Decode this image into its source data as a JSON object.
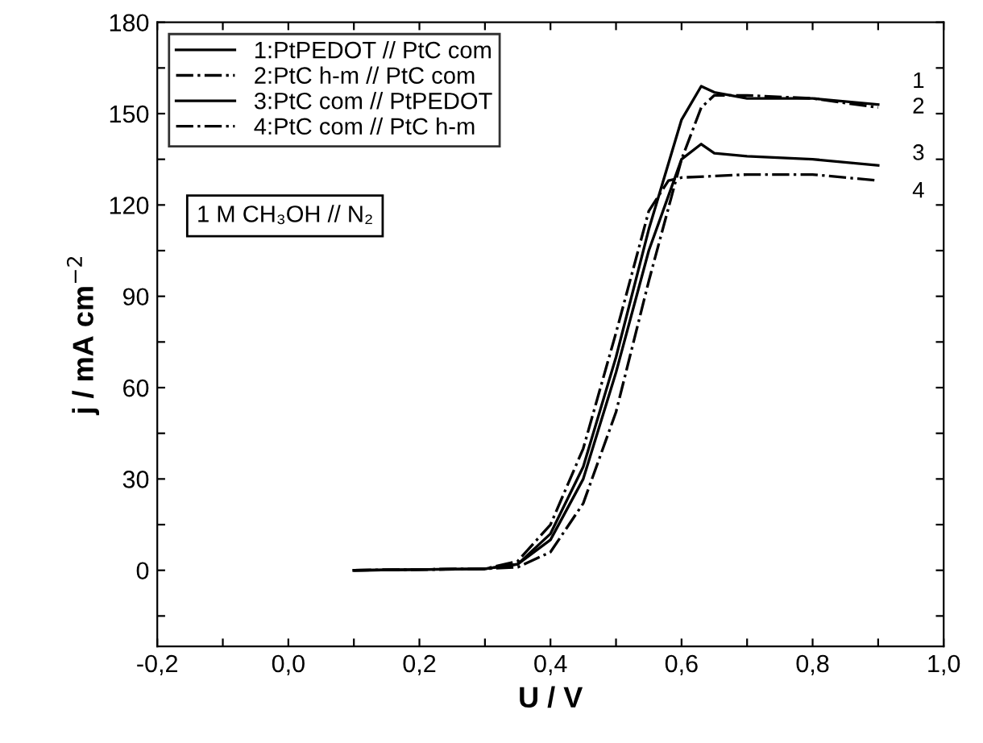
{
  "chart_data": {
    "type": "line",
    "xlabel": "U / V",
    "ylabel": "j / mA cm$^{−2}$",
    "xlim": [
      -0.2,
      1.0
    ],
    "ylim": [
      -25,
      180
    ],
    "xticks": [
      {
        "value": -0.2,
        "label": "-0,2"
      },
      {
        "value": -0.1,
        "label": null
      },
      {
        "value": 0.0,
        "label": "0,0"
      },
      {
        "value": 0.1,
        "label": null
      },
      {
        "value": 0.2,
        "label": "0,2"
      },
      {
        "value": 0.3,
        "label": null
      },
      {
        "value": 0.4,
        "label": "0,4"
      },
      {
        "value": 0.5,
        "label": null
      },
      {
        "value": 0.6,
        "label": "0,6"
      },
      {
        "value": 0.7,
        "label": null
      },
      {
        "value": 0.8,
        "label": "0,8"
      },
      {
        "value": 0.9,
        "label": null
      },
      {
        "value": 1.0,
        "label": "1,0"
      }
    ],
    "yticks": [
      {
        "value": -15,
        "label": null
      },
      0,
      {
        "value": 15,
        "label": null
      },
      30,
      {
        "value": 45,
        "label": null
      },
      60,
      {
        "value": 75,
        "label": null
      },
      90,
      {
        "value": 105,
        "label": null
      },
      120,
      {
        "value": 135,
        "label": null
      },
      150,
      {
        "value": 165,
        "label": null
      },
      180
    ],
    "legend": "top left",
    "grid": false,
    "marker": "none",
    "series": [
      {
        "name": "1:PtPEDOT // PtC com",
        "color": "#000000",
        "line_style": "solid",
        "x": [
          0.1,
          0.3,
          0.35,
          0.4,
          0.45,
          0.5,
          0.55,
          0.6,
          0.63,
          0.65,
          0.7,
          0.8,
          0.9
        ],
        "values": [
          0,
          0.5,
          2,
          12,
          34,
          70,
          112,
          148,
          159,
          157,
          155,
          155,
          153
        ]
      },
      {
        "name": "2:PtC h-m // PtC com",
        "color": "#000000",
        "line_style": "dashdot",
        "x": [
          0.1,
          0.3,
          0.35,
          0.4,
          0.45,
          0.5,
          0.55,
          0.6,
          0.63,
          0.65,
          0.7,
          0.8,
          0.9
        ],
        "values": [
          0,
          0.5,
          1,
          6,
          22,
          52,
          95,
          135,
          152,
          156,
          156,
          155,
          152
        ]
      },
      {
        "name": "3:PtC com // PtPEDOT",
        "color": "#000000",
        "line_style": "solid",
        "x": [
          0.1,
          0.3,
          0.35,
          0.4,
          0.45,
          0.5,
          0.55,
          0.6,
          0.63,
          0.65,
          0.7,
          0.8,
          0.9
        ],
        "values": [
          0,
          0.5,
          2,
          10,
          30,
          65,
          105,
          135,
          140,
          137,
          136,
          135,
          133
        ]
      },
      {
        "name": "4:PtC com // PtC h-m",
        "color": "#000000",
        "line_style": "dashdot",
        "x": [
          0.1,
          0.3,
          0.35,
          0.4,
          0.45,
          0.5,
          0.55,
          0.58,
          0.6,
          0.7,
          0.8,
          0.9
        ],
        "values": [
          0,
          0.5,
          3,
          15,
          40,
          78,
          118,
          128,
          129,
          130,
          130,
          128
        ]
      }
    ],
    "annotations": [
      "1 M CH₃OH // N₂",
      "1",
      "2",
      "3",
      "4"
    ]
  }
}
